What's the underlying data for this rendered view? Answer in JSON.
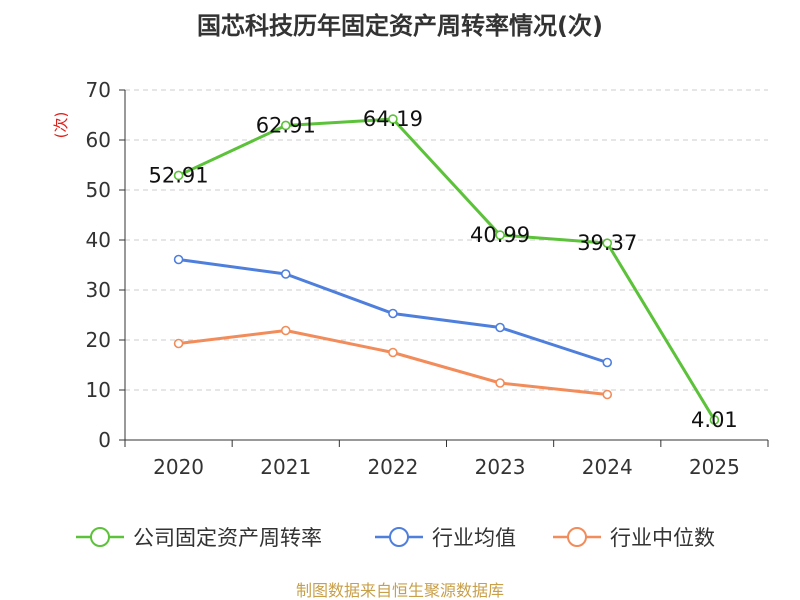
{
  "chart_data": {
    "type": "line",
    "title": "国芯科技历年固定资产周转率情况(次)",
    "ylabel": "(次)",
    "xlabel": "",
    "categories": [
      "2020",
      "2021",
      "2022",
      "2023",
      "2024",
      "2025"
    ],
    "y_ticks": [
      "0",
      "10",
      "20",
      "30",
      "40",
      "50",
      "60",
      "70"
    ],
    "ylim": [
      0,
      70
    ],
    "grid": true,
    "legend_position": "bottom",
    "series": [
      {
        "name": "公司固定资产周转率",
        "color": "#5cc23a",
        "values": [
          52.91,
          62.91,
          64.19,
          40.99,
          39.37,
          4.01
        ],
        "labels": [
          "52.91",
          "62.91",
          "64.19",
          "40.99",
          "39.37",
          "4.01"
        ]
      },
      {
        "name": "行业均值",
        "color": "#4f7fdd",
        "values": [
          36.1,
          33.2,
          25.3,
          22.5,
          15.5,
          null
        ]
      },
      {
        "name": "行业中位数",
        "color": "#f28c5a",
        "values": [
          19.3,
          21.9,
          17.5,
          11.4,
          9.1,
          null
        ]
      }
    ]
  },
  "footer": {
    "source": "制图数据来自恒生聚源数据库"
  }
}
